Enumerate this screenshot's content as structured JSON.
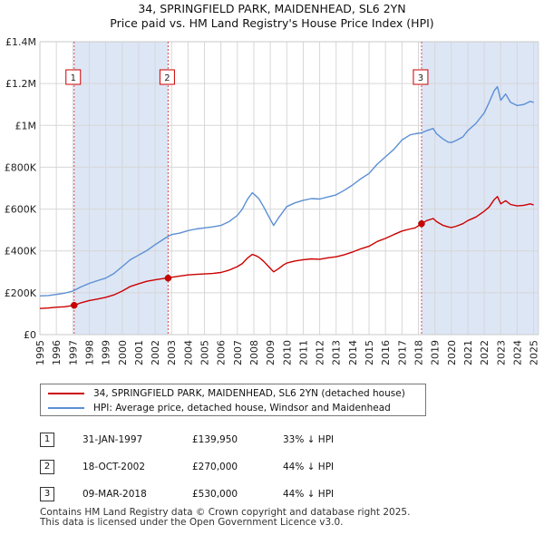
{
  "title_line1": "34, SPRINGFIELD PARK, MAIDENHEAD, SL6 2YN",
  "title_line2": "Price paid vs. HM Land Registry's House Price Index (HPI)",
  "chart_data": {
    "type": "line",
    "xlim": [
      1995,
      2025.3
    ],
    "ylim": [
      0,
      1400000
    ],
    "x_ticks": [
      1995,
      1996,
      1997,
      1998,
      1999,
      2000,
      2001,
      2002,
      2003,
      2004,
      2005,
      2006,
      2007,
      2008,
      2009,
      2010,
      2011,
      2012,
      2013,
      2014,
      2015,
      2016,
      2017,
      2018,
      2019,
      2020,
      2021,
      2022,
      2023,
      2024,
      2025
    ],
    "y_ticks": [
      {
        "value": 0,
        "label": "£0"
      },
      {
        "value": 200000,
        "label": "£200K"
      },
      {
        "value": 400000,
        "label": "£400K"
      },
      {
        "value": 600000,
        "label": "£600K"
      },
      {
        "value": 800000,
        "label": "£800K"
      },
      {
        "value": 1000000,
        "label": "£1M"
      },
      {
        "value": 1200000,
        "label": "£1.2M"
      },
      {
        "value": 1400000,
        "label": "£1.4M"
      }
    ],
    "shaded_periods": [
      [
        1997.08,
        2002.79
      ],
      [
        2018.19,
        2025.3
      ]
    ],
    "series": [
      {
        "name": "34, SPRINGFIELD PARK, MAIDENHEAD, SL6 2YN (detached house)",
        "color": "#cc0000",
        "points": [
          [
            1995,
            125000
          ],
          [
            1995.5,
            127000
          ],
          [
            1996,
            131000
          ],
          [
            1996.5,
            133000
          ],
          [
            1997.08,
            139950
          ],
          [
            1997.5,
            152000
          ],
          [
            1998,
            163000
          ],
          [
            1998.5,
            170000
          ],
          [
            1999,
            178000
          ],
          [
            1999.5,
            190000
          ],
          [
            2000,
            208000
          ],
          [
            2000.5,
            230000
          ],
          [
            2001,
            243000
          ],
          [
            2001.5,
            255000
          ],
          [
            2002,
            262000
          ],
          [
            2002.5,
            268000
          ],
          [
            2002.79,
            270000
          ],
          [
            2003,
            274000
          ],
          [
            2003.5,
            280000
          ],
          [
            2004,
            285000
          ],
          [
            2004.5,
            288000
          ],
          [
            2005,
            290000
          ],
          [
            2005.5,
            292000
          ],
          [
            2006,
            297000
          ],
          [
            2006.5,
            308000
          ],
          [
            2007,
            325000
          ],
          [
            2007.3,
            340000
          ],
          [
            2007.6,
            365000
          ],
          [
            2007.9,
            383000
          ],
          [
            2008.1,
            378000
          ],
          [
            2008.3,
            370000
          ],
          [
            2008.6,
            350000
          ],
          [
            2008.9,
            325000
          ],
          [
            2009.2,
            300000
          ],
          [
            2009.5,
            315000
          ],
          [
            2009.8,
            333000
          ],
          [
            2010,
            342000
          ],
          [
            2010.5,
            352000
          ],
          [
            2011,
            358000
          ],
          [
            2011.5,
            362000
          ],
          [
            2012,
            360000
          ],
          [
            2012.5,
            367000
          ],
          [
            2013,
            372000
          ],
          [
            2013.5,
            382000
          ],
          [
            2014,
            395000
          ],
          [
            2014.5,
            410000
          ],
          [
            2015,
            422000
          ],
          [
            2015.5,
            445000
          ],
          [
            2016,
            460000
          ],
          [
            2016.5,
            478000
          ],
          [
            2017,
            495000
          ],
          [
            2017.5,
            505000
          ],
          [
            2017.8,
            510000
          ],
          [
            2018.19,
            530000
          ],
          [
            2018.5,
            545000
          ],
          [
            2018.9,
            555000
          ],
          [
            2019.1,
            540000
          ],
          [
            2019.5,
            522000
          ],
          [
            2019.8,
            515000
          ],
          [
            2020,
            512000
          ],
          [
            2020.3,
            518000
          ],
          [
            2020.7,
            530000
          ],
          [
            2021,
            545000
          ],
          [
            2021.5,
            562000
          ],
          [
            2022,
            590000
          ],
          [
            2022.3,
            610000
          ],
          [
            2022.6,
            645000
          ],
          [
            2022.8,
            660000
          ],
          [
            2023,
            625000
          ],
          [
            2023.3,
            640000
          ],
          [
            2023.6,
            622000
          ],
          [
            2024,
            615000
          ],
          [
            2024.4,
            618000
          ],
          [
            2024.8,
            625000
          ],
          [
            2025,
            620000
          ]
        ]
      },
      {
        "name": "HPI: Average price, detached house, Windsor and Maidenhead",
        "color": "#5b8fd4",
        "points": [
          [
            1995,
            185000
          ],
          [
            1995.5,
            187000
          ],
          [
            1996,
            192000
          ],
          [
            1996.5,
            198000
          ],
          [
            1997,
            208000
          ],
          [
            1997.5,
            228000
          ],
          [
            1998,
            245000
          ],
          [
            1998.5,
            258000
          ],
          [
            1999,
            270000
          ],
          [
            1999.5,
            292000
          ],
          [
            2000,
            325000
          ],
          [
            2000.5,
            358000
          ],
          [
            2001,
            380000
          ],
          [
            2001.5,
            402000
          ],
          [
            2002,
            430000
          ],
          [
            2002.5,
            455000
          ],
          [
            2002.79,
            470000
          ],
          [
            2003,
            478000
          ],
          [
            2003.5,
            485000
          ],
          [
            2004,
            497000
          ],
          [
            2004.5,
            505000
          ],
          [
            2005,
            510000
          ],
          [
            2005.5,
            515000
          ],
          [
            2006,
            522000
          ],
          [
            2006.5,
            540000
          ],
          [
            2007,
            570000
          ],
          [
            2007.3,
            600000
          ],
          [
            2007.6,
            645000
          ],
          [
            2007.9,
            678000
          ],
          [
            2008.1,
            665000
          ],
          [
            2008.3,
            650000
          ],
          [
            2008.6,
            610000
          ],
          [
            2008.9,
            565000
          ],
          [
            2009.2,
            522000
          ],
          [
            2009.5,
            558000
          ],
          [
            2009.8,
            590000
          ],
          [
            2010,
            612000
          ],
          [
            2010.5,
            630000
          ],
          [
            2011,
            642000
          ],
          [
            2011.5,
            650000
          ],
          [
            2012,
            648000
          ],
          [
            2012.5,
            658000
          ],
          [
            2013,
            668000
          ],
          [
            2013.5,
            690000
          ],
          [
            2014,
            715000
          ],
          [
            2014.5,
            745000
          ],
          [
            2015,
            770000
          ],
          [
            2015.5,
            815000
          ],
          [
            2016,
            850000
          ],
          [
            2016.5,
            885000
          ],
          [
            2017,
            930000
          ],
          [
            2017.5,
            955000
          ],
          [
            2017.8,
            960000
          ],
          [
            2018.19,
            965000
          ],
          [
            2018.5,
            975000
          ],
          [
            2018.9,
            985000
          ],
          [
            2019.1,
            960000
          ],
          [
            2019.5,
            935000
          ],
          [
            2019.8,
            920000
          ],
          [
            2020,
            918000
          ],
          [
            2020.3,
            928000
          ],
          [
            2020.7,
            945000
          ],
          [
            2021,
            975000
          ],
          [
            2021.5,
            1010000
          ],
          [
            2022,
            1060000
          ],
          [
            2022.3,
            1110000
          ],
          [
            2022.6,
            1165000
          ],
          [
            2022.8,
            1185000
          ],
          [
            2023,
            1120000
          ],
          [
            2023.3,
            1150000
          ],
          [
            2023.6,
            1110000
          ],
          [
            2024,
            1095000
          ],
          [
            2024.4,
            1100000
          ],
          [
            2024.8,
            1115000
          ],
          [
            2025,
            1110000
          ]
        ]
      }
    ],
    "sales": [
      {
        "id": "1",
        "x": 1997.08,
        "price": 139950
      },
      {
        "id": "2",
        "x": 2002.79,
        "price": 270000
      },
      {
        "id": "3",
        "x": 2018.19,
        "price": 530000
      }
    ]
  },
  "legend": {
    "red_label": "34, SPRINGFIELD PARK, MAIDENHEAD, SL6 2YN (detached house)",
    "blue_label": "HPI: Average price, detached house, Windsor and Maidenhead"
  },
  "sales_table": [
    {
      "id": "1",
      "date": "31-JAN-1997",
      "price": "£139,950",
      "hpi": "33% ↓ HPI"
    },
    {
      "id": "2",
      "date": "18-OCT-2002",
      "price": "£270,000",
      "hpi": "44% ↓ HPI"
    },
    {
      "id": "3",
      "date": "09-MAR-2018",
      "price": "£530,000",
      "hpi": "44% ↓ HPI"
    }
  ],
  "footer": {
    "line1": "Contains HM Land Registry data © Crown copyright and database right 2025.",
    "line2": "This data is licensed under the Open Government Licence v3.0."
  },
  "colors": {
    "price_line": "#cc0000",
    "hpi_line": "#5b8fd4",
    "shade": "#dde6f5",
    "grid": "#d7d7d7"
  }
}
